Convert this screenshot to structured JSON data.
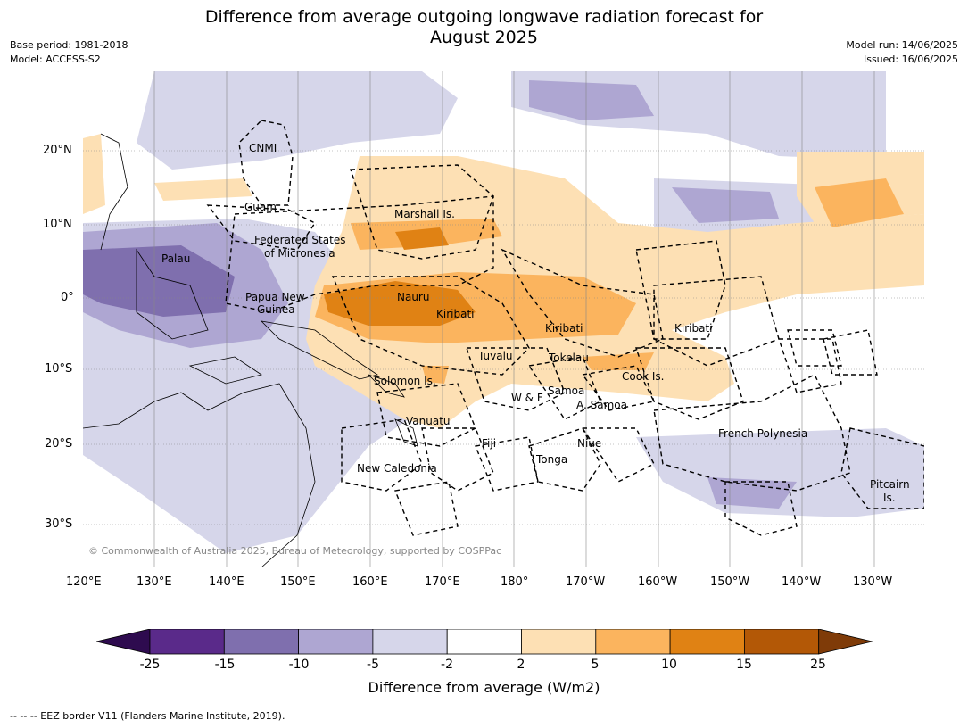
{
  "title_line1": "Difference from average outgoing longwave radiation forecast for",
  "title_line2": "August 2025",
  "meta_left": [
    "Base period: 1981-2018",
    "Model: ACCESS-S2"
  ],
  "meta_right": [
    "Model run: 14/06/2025",
    "Issued: 16/06/2025"
  ],
  "copyright": "© Commonwealth of Australia 2025, Bureau of Meteorology, supported by COSPPac",
  "lon_ticks": [
    "120°E",
    "130°E",
    "140°E",
    "150°E",
    "160°E",
    "170°E",
    "180°",
    "170°W",
    "160°W",
    "150°W",
    "140°W",
    "130°W"
  ],
  "lat_ticks": [
    "20°N",
    "10°N",
    "0°",
    "10°S",
    "20°S",
    "30°S"
  ],
  "regions": [
    "CNMI",
    "Guam",
    "Marshall Is.",
    "Federated States",
    "of Micronesia",
    "Palau",
    "Papua New",
    "Guinea",
    "Nauru",
    "Kiribati",
    "Kiribati",
    "Kiribati",
    "Tuvalu",
    "Tokelau",
    "Solomon Is.",
    "W & F",
    "Samoa",
    "A. Samoa",
    "Cook Is.",
    "Vanuatu",
    "Fiji",
    "Niue",
    "Tonga",
    "French Polynesia",
    "New Caledonia",
    "Pitcairn",
    "Is."
  ],
  "colorbar": {
    "ticks": [
      "-25",
      "-15",
      "-10",
      "-5",
      "-2",
      "2",
      "5",
      "10",
      "15",
      "25"
    ],
    "colors": [
      "#2e0b4f",
      "#5a2a8a",
      "#7f6fae",
      "#aea6d2",
      "#d6d6ea",
      "#ffffff",
      "#fde0b4",
      "#fbb45e",
      "#e08214",
      "#b35806",
      "#7f3b08"
    ],
    "label": "Difference from average (W/m2)"
  },
  "footnote": "--  --  -- EEZ border V11 (Flanders Marine Institute, 2019)."
}
